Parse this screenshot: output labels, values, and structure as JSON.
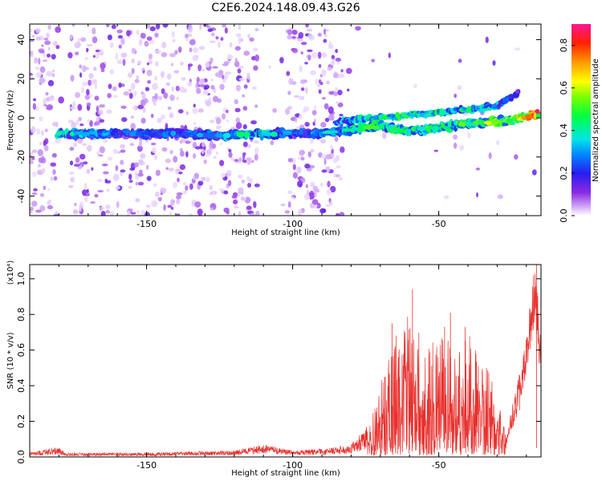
{
  "title": "C2E6.2024.148.09.43.G26",
  "chart_data": [
    {
      "type": "heatmap",
      "name": "spectrogram",
      "xlabel": "Height of straight line (km)",
      "ylabel": "Frequency (Hz)",
      "xlim": [
        -190,
        -15
      ],
      "ylim": [
        -50,
        48
      ],
      "xticks": [
        -150,
        -100,
        -50
      ],
      "yticks": [
        -40,
        -20,
        0,
        20,
        40
      ],
      "colorbar": {
        "label": "Normalized spectral amplitude",
        "range": [
          0.0,
          0.9
        ],
        "ticks": [
          0.0,
          0.2,
          0.4,
          0.6,
          0.8
        ],
        "colormap": "rainbow"
      },
      "ridge": [
        {
          "x": -180,
          "y": -8,
          "amp": 0.35
        },
        {
          "x": -160,
          "y": -8,
          "amp": 0.25
        },
        {
          "x": -140,
          "y": -8,
          "amp": 0.25
        },
        {
          "x": -125,
          "y": -9,
          "amp": 0.3
        },
        {
          "x": -112,
          "y": -8,
          "amp": 0.4
        },
        {
          "x": -100,
          "y": -8,
          "amp": 0.25
        },
        {
          "x": -90,
          "y": -8,
          "amp": 0.3
        },
        {
          "x": -80,
          "y": -6,
          "amp": 0.4
        },
        {
          "x": -70,
          "y": -4,
          "amp": 0.45
        },
        {
          "x": -60,
          "y": -7,
          "amp": 0.4
        },
        {
          "x": -50,
          "y": -5,
          "amp": 0.45
        },
        {
          "x": -40,
          "y": -3,
          "amp": 0.45
        },
        {
          "x": -30,
          "y": -2,
          "amp": 0.5
        },
        {
          "x": -22,
          "y": 0,
          "amp": 0.55
        },
        {
          "x": -17,
          "y": 2,
          "amp": 0.75
        }
      ],
      "upper_branch": [
        {
          "x": -85,
          "y": -2,
          "amp": 0.3
        },
        {
          "x": -70,
          "y": 0,
          "amp": 0.45
        },
        {
          "x": -55,
          "y": 2,
          "amp": 0.45
        },
        {
          "x": -42,
          "y": 4,
          "amp": 0.4
        },
        {
          "x": -30,
          "y": 6,
          "amp": 0.35
        },
        {
          "x": -22,
          "y": 14,
          "amp": 0.15
        }
      ]
    },
    {
      "type": "line",
      "name": "snr",
      "xlabel": "Height of straight line (km)",
      "ylabel": "SNR (10 * v/v)",
      "scale_label": "(x10⁴)",
      "xlim": [
        -190,
        -15
      ],
      "ylim": [
        0,
        1.08
      ],
      "xticks": [
        -150,
        -100,
        -50
      ],
      "yticks": [
        0.0,
        0.2,
        0.4,
        0.6,
        0.8,
        1.0
      ],
      "color": "#e8312e",
      "envelope": [
        {
          "x": -190,
          "y": 0.02
        },
        {
          "x": -180,
          "y": 0.05
        },
        {
          "x": -178,
          "y": 0.02
        },
        {
          "x": -150,
          "y": 0.02
        },
        {
          "x": -120,
          "y": 0.03
        },
        {
          "x": -110,
          "y": 0.06
        },
        {
          "x": -100,
          "y": 0.03
        },
        {
          "x": -88,
          "y": 0.04
        },
        {
          "x": -80,
          "y": 0.06
        },
        {
          "x": -74,
          "y": 0.15
        },
        {
          "x": -70,
          "y": 0.35
        },
        {
          "x": -66,
          "y": 0.55
        },
        {
          "x": -60,
          "y": 0.7
        },
        {
          "x": -55,
          "y": 0.55
        },
        {
          "x": -50,
          "y": 0.6
        },
        {
          "x": -45,
          "y": 0.55
        },
        {
          "x": -40,
          "y": 0.6
        },
        {
          "x": -35,
          "y": 0.5
        },
        {
          "x": -30,
          "y": 0.35
        },
        {
          "x": -27,
          "y": 0.1
        },
        {
          "x": -25,
          "y": 0.25
        },
        {
          "x": -22,
          "y": 0.45
        },
        {
          "x": -20,
          "y": 0.65
        },
        {
          "x": -17,
          "y": 1.08
        },
        {
          "x": -15,
          "y": 0.58
        }
      ],
      "peaks": [
        {
          "x": -59,
          "y": 0.94
        },
        {
          "x": -46,
          "y": 0.81
        },
        {
          "x": -48,
          "y": 0.73
        },
        {
          "x": -66,
          "y": 0.75
        },
        {
          "x": -41,
          "y": 0.73
        },
        {
          "x": -16.5,
          "y": 1.08
        }
      ]
    }
  ]
}
